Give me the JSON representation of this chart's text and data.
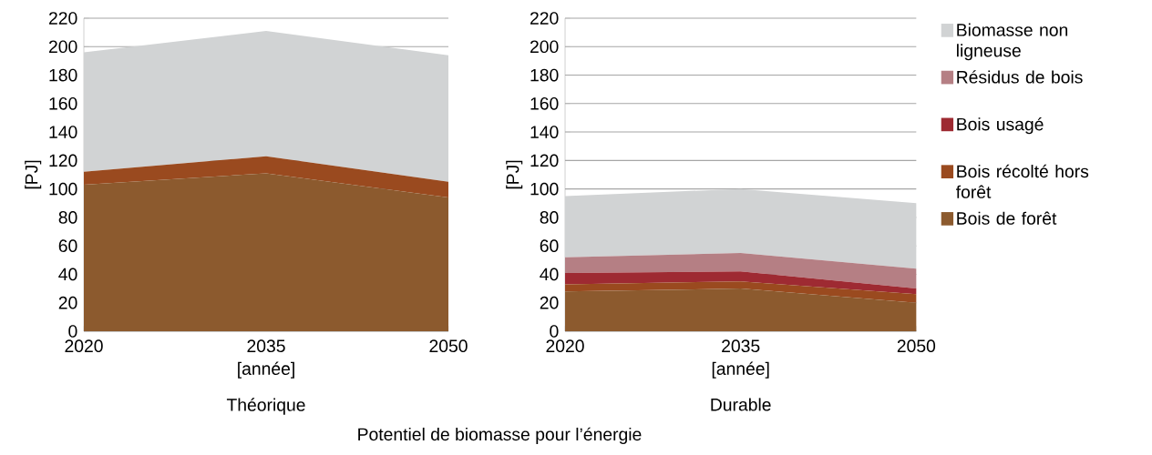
{
  "chart_data": [
    {
      "type": "area",
      "stacked": true,
      "title": "Théorique",
      "xlabel": "[année]",
      "ylabel": "[PJ]",
      "x": [
        2020,
        2035,
        2050
      ],
      "xlim": [
        2020,
        2050
      ],
      "xticks": [
        2020,
        2035,
        2050
      ],
      "ylim": [
        0,
        220
      ],
      "yticks": [
        0,
        20,
        40,
        60,
        80,
        100,
        120,
        140,
        160,
        180,
        200,
        220
      ],
      "grid": "y",
      "legend": false,
      "annotations": [
        "Potentiel de biomasse pour l’énergie"
      ],
      "series": [
        {
          "color": "#8c5a2e",
          "values": [
            103,
            111,
            94
          ]
        },
        {
          "color": "#9a4a1f",
          "values": [
            9,
            12,
            11
          ]
        },
        {
          "color": "#d1d3d4",
          "values": [
            84,
            88,
            89
          ]
        }
      ]
    },
    {
      "type": "area",
      "stacked": true,
      "title": "Durable",
      "xlabel": "[année]",
      "ylabel": "[PJ]",
      "x": [
        2020,
        2035,
        2050
      ],
      "xlim": [
        2020,
        2050
      ],
      "xticks": [
        2020,
        2035,
        2050
      ],
      "ylim": [
        0,
        220
      ],
      "yticks": [
        0,
        20,
        40,
        60,
        80,
        100,
        120,
        140,
        160,
        180,
        200,
        220
      ],
      "grid": "y",
      "legend": "right",
      "series": [
        {
          "name": "Bois de forêt",
          "color": "#8c5a2e",
          "values": [
            28,
            30,
            20
          ]
        },
        {
          "name": "Bois récolté hors forêt",
          "color": "#9a4a1f",
          "values": [
            5,
            5,
            6
          ]
        },
        {
          "name": "Bois usagé",
          "color": "#9e2a32",
          "values": [
            8,
            7,
            4
          ]
        },
        {
          "name": "Résidus de bois",
          "color": "#b57f84",
          "values": [
            11,
            13,
            14
          ]
        },
        {
          "name": "Biomasse non ligneuse",
          "color": "#d1d3d4",
          "values": [
            43,
            45,
            46
          ]
        }
      ]
    }
  ]
}
